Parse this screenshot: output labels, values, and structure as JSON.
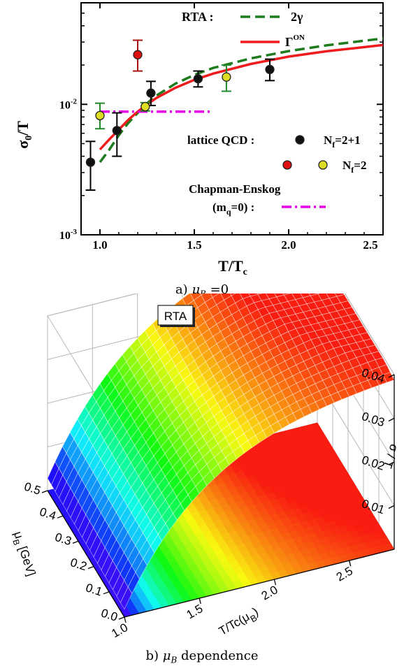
{
  "caption_a": {
    "prefix": "a) ",
    "symbol": "μ",
    "sub": "B",
    "suffix": " =0"
  },
  "caption_b": {
    "prefix": "b) ",
    "symbol": "μ",
    "sub": "B",
    "suffix": " dependence"
  },
  "colors": {
    "rta_2gamma": "#1e7b1e",
    "rta_gon": "#ee1c1c",
    "chapman": "#e600e6",
    "nf21_fill": "#111111",
    "nf2_red": "#dd1111",
    "nf2_yellow": "#dddd22",
    "nf2_green_err": "#22882a",
    "nf2_red_err": "#aa1111"
  },
  "chart_data": [
    {
      "type": "line",
      "ylabel_main": "σ",
      "ylabel_sub": "0",
      "ylabel_rest": "/T",
      "xlabel_main": "T/T",
      "xlabel_sub": "c",
      "xlim": [
        0.9,
        2.5
      ],
      "ylim": [
        0.001,
        0.06
      ],
      "yscale": "log",
      "x_ticks": [
        "1.0",
        "1.5",
        "2.0",
        "2.5"
      ],
      "y_ticks": [
        {
          "base": "10",
          "exp": "-3"
        },
        {
          "base": "10",
          "exp": "-2"
        }
      ],
      "legend": {
        "rta_label": "RTA :",
        "series_2gamma": "2γ",
        "series_gon_main": "Γ",
        "series_gon_sup": "ON",
        "lattice_label": "lattice QCD :",
        "nf21_main": "N",
        "nf21_sub": "f",
        "nf21_rest": "=2+1",
        "nf2_main": "N",
        "nf2_sub": "f",
        "nf2_rest": "=2",
        "chapman_line1": "Chapman-Enskog",
        "chapman_line2_pre": "(m",
        "chapman_line2_sub": "q",
        "chapman_line2_post": "=0) :"
      },
      "series": [
        {
          "name": "2γ",
          "style": "dashed",
          "x": [
            1.0,
            1.05,
            1.1,
            1.15,
            1.2,
            1.25,
            1.3,
            1.4,
            1.5,
            1.6,
            1.8,
            2.0,
            2.2,
            2.5
          ],
          "y": [
            0.0036,
            0.0045,
            0.0058,
            0.0072,
            0.0086,
            0.0102,
            0.0117,
            0.0144,
            0.0168,
            0.019,
            0.0225,
            0.0256,
            0.0283,
            0.032
          ]
        },
        {
          "name": "Γ^ON",
          "style": "solid",
          "x": [
            1.0,
            1.05,
            1.1,
            1.15,
            1.2,
            1.25,
            1.3,
            1.4,
            1.5,
            1.6,
            1.8,
            2.0,
            2.2,
            2.5
          ],
          "y": [
            0.0045,
            0.0054,
            0.0064,
            0.0076,
            0.0088,
            0.01,
            0.0112,
            0.0134,
            0.0154,
            0.0172,
            0.0204,
            0.0232,
            0.0255,
            0.0285
          ]
        },
        {
          "name": "Chapman-Enskog (m_q=0)",
          "style": "dashdot",
          "x": [
            1.0,
            1.6
          ],
          "y": [
            0.0088,
            0.0088
          ]
        }
      ],
      "points_nf21": [
        {
          "x": 0.95,
          "y": 0.0036,
          "lo": 0.0022,
          "hi": 0.0052
        },
        {
          "x": 1.09,
          "y": 0.0063,
          "lo": 0.004,
          "hi": 0.0086
        },
        {
          "x": 1.27,
          "y": 0.0122,
          "lo": 0.0098,
          "hi": 0.015
        },
        {
          "x": 1.52,
          "y": 0.0157,
          "lo": 0.0136,
          "hi": 0.018
        },
        {
          "x": 1.9,
          "y": 0.0185,
          "lo": 0.0152,
          "hi": 0.0222
        }
      ],
      "points_nf2_red": [
        {
          "x": 1.2,
          "y": 0.024,
          "lo": 0.018,
          "hi": 0.031
        }
      ],
      "points_nf2_yellow": [
        {
          "x": 1.0,
          "y": 0.0082,
          "lo": 0.0065,
          "hi": 0.0102
        },
        {
          "x": 1.24,
          "y": 0.0096,
          "lo": 0.0089,
          "hi": 0.0103
        },
        {
          "x": 1.67,
          "y": 0.0162,
          "lo": 0.0126,
          "hi": 0.02
        }
      ]
    },
    {
      "type": "surface",
      "badge": "RTA",
      "mu_axis": {
        "label_main": "μ",
        "label_sub": "B",
        "label_rest": " [GeV]",
        "ticks": [
          "0.0",
          "0.1",
          "0.2",
          "0.3",
          "0.4",
          "0.5"
        ]
      },
      "t_axis": {
        "label_main": "T/Tc(μ",
        "label_sub": "B",
        "label_rest": ")",
        "ticks": [
          "1.0",
          "1.5",
          "2.0",
          "2.5"
        ]
      },
      "z_axis": {
        "label": "σ / T",
        "ticks": [
          "0.01",
          "0.02",
          "0.03",
          "0.04"
        ]
      },
      "t_range": [
        1.0,
        2.8
      ],
      "mu_range": [
        0.0,
        0.5
      ],
      "z_range": [
        0.0,
        0.04
      ],
      "colormap": "rainbow"
    }
  ]
}
